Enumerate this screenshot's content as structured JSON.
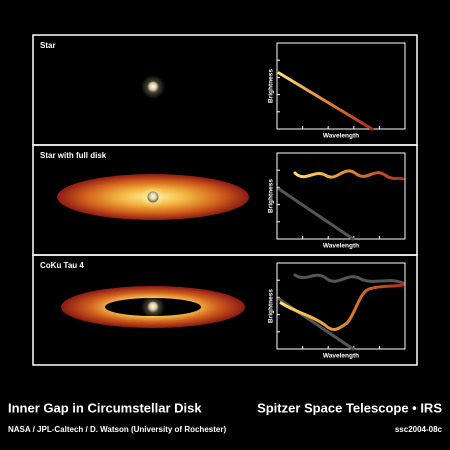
{
  "panels": [
    {
      "label": "Star",
      "y_label": "Brightness",
      "x_label": "Wavelength"
    },
    {
      "label": "Star with full disk",
      "y_label": "Brightness",
      "x_label": "Wavelength"
    },
    {
      "label": "CoKu Tau 4",
      "y_label": "Brightness",
      "x_label": "Wavelength"
    }
  ],
  "footer": {
    "title": "Inner Gap in Circumstellar Disk",
    "telescope": "Spitzer Space Telescope • IRS",
    "credit": "NASA / JPL-Caltech / D. Watson (University of Rochester)",
    "id": "ssc2004-08c"
  }
}
